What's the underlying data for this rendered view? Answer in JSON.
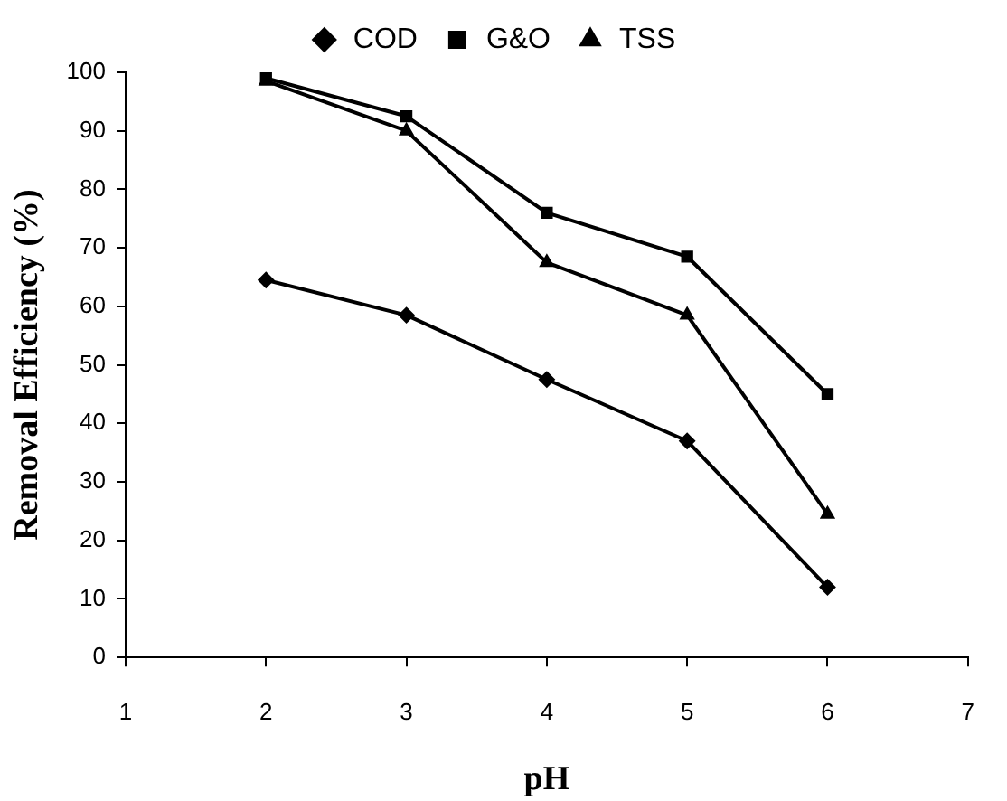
{
  "chart_data": {
    "type": "line",
    "xlabel": "pH",
    "ylabel": "Removal Efficiency (%)",
    "x": [
      2,
      3,
      4,
      5,
      6
    ],
    "series": [
      {
        "name": "COD",
        "color": "#000000",
        "marker": "diamond",
        "values": [
          64.5,
          58.5,
          47.5,
          37,
          12
        ]
      },
      {
        "name": "G&O",
        "color": "#000000",
        "marker": "square",
        "values": [
          99,
          92.5,
          76,
          68.5,
          45
        ]
      },
      {
        "name": "TSS",
        "color": "#000000",
        "marker": "triangle",
        "values": [
          98.5,
          90,
          67.5,
          58.5,
          24.5
        ]
      }
    ],
    "xlim": [
      1,
      7
    ],
    "xticks": [
      1,
      2,
      3,
      4,
      5,
      6,
      7
    ],
    "ylim": [
      0,
      100
    ],
    "yticks": [
      0,
      10,
      20,
      30,
      40,
      50,
      60,
      70,
      80,
      90,
      100
    ],
    "grid": false,
    "legend": "top",
    "line_style": "solid"
  }
}
